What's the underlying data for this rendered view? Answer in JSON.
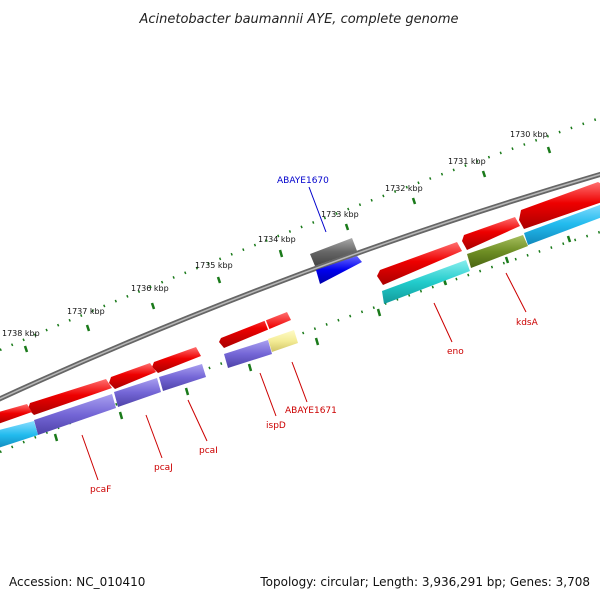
{
  "title": "Acinetobacter baumannii AYE, complete genome",
  "footer": {
    "accession": "Accession: NC_010410",
    "topology": "Topology: circular; Length: 3,936,291 bp; Genes: 3,708"
  },
  "colors": {
    "backbone": "#888888",
    "tick": "#1a7a1a",
    "gene_label": "#cc0000",
    "highlight_label": "#0000cc"
  },
  "scale_labels": [
    "1730 kbp",
    "1731 kbp",
    "1732 kbp",
    "1733 kbp",
    "1734 kbp",
    "1735 kbp",
    "1736 kbp",
    "1737 kbp",
    "1738 kbp"
  ],
  "gene_labels": [
    {
      "text": "ABAYE1670",
      "color": "#0000cc"
    },
    {
      "text": "kdsA",
      "color": "#cc0000"
    },
    {
      "text": "eno",
      "color": "#cc0000"
    },
    {
      "text": "ABAYE1671",
      "color": "#cc0000"
    },
    {
      "text": "ispD",
      "color": "#cc0000"
    },
    {
      "text": "pcaI",
      "color": "#cc0000"
    },
    {
      "text": "pcaJ",
      "color": "#cc0000"
    },
    {
      "text": "pcaF",
      "color": "#cc0000"
    }
  ]
}
